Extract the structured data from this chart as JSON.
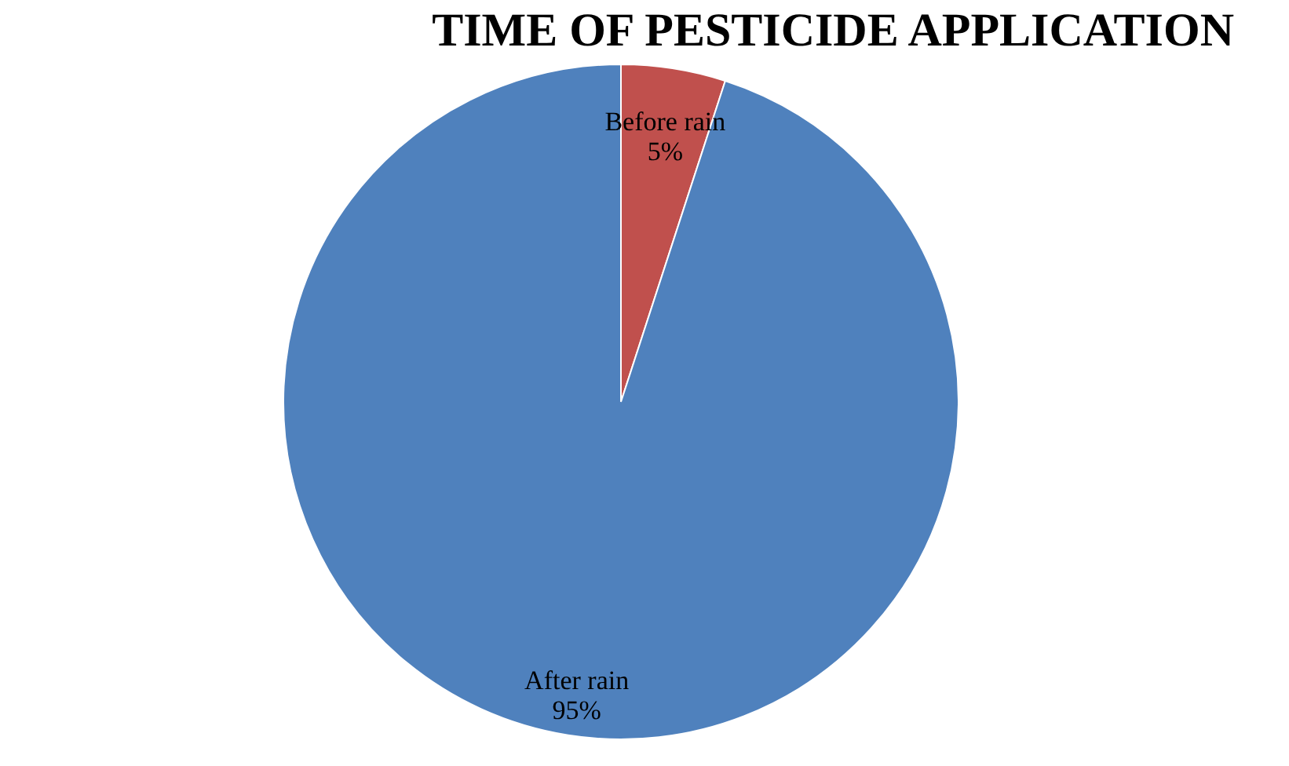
{
  "chart_data": {
    "type": "pie",
    "title": "TIME OF PESTICIDE APPLICATION",
    "categories": [
      "Before rain",
      "After rain"
    ],
    "values": [
      5,
      95
    ],
    "colors": [
      "#c0504d",
      "#4f81bd"
    ],
    "value_labels": [
      "5%",
      "95%"
    ],
    "legend": false
  }
}
